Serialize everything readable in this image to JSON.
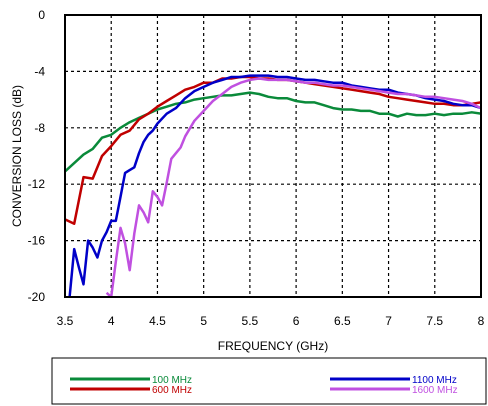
{
  "chart_data": {
    "type": "line",
    "title": "",
    "xlabel": "FREQUENCY (GHz)",
    "ylabel": "CONVERSION LOSS (dB)",
    "xlim": [
      3.5,
      8
    ],
    "ylim": [
      -20,
      0
    ],
    "xticks": [
      3.5,
      4,
      4.5,
      5,
      5.5,
      6,
      6.5,
      7,
      7.5,
      8
    ],
    "xtick_labels": [
      "3.5",
      "4",
      "4.5",
      "5",
      "5.5",
      "6",
      "6.5",
      "7",
      "7.5",
      "8"
    ],
    "yticks": [
      0,
      -4,
      -8,
      -12,
      -16,
      -20
    ],
    "ytick_labels": [
      "0",
      "-4",
      "-8",
      "-12",
      "-16",
      "-20"
    ],
    "grid": true,
    "grid_style": "dotted",
    "legend_position": "bottom",
    "series": [
      {
        "name": "100 MHz",
        "color": "#0a8a3a",
        "x": [
          3.5,
          3.6,
          3.7,
          3.8,
          3.9,
          4.0,
          4.1,
          4.2,
          4.3,
          4.4,
          4.5,
          4.6,
          4.7,
          4.8,
          4.9,
          5.0,
          5.1,
          5.2,
          5.3,
          5.4,
          5.5,
          5.6,
          5.7,
          5.8,
          5.9,
          6.0,
          6.1,
          6.2,
          6.3,
          6.4,
          6.5,
          6.6,
          6.7,
          6.8,
          6.9,
          7.0,
          7.1,
          7.2,
          7.3,
          7.4,
          7.5,
          7.6,
          7.7,
          7.8,
          7.9,
          8.0
        ],
        "y": [
          -11.1,
          -10.5,
          -9.9,
          -9.5,
          -8.7,
          -8.5,
          -8.0,
          -7.6,
          -7.3,
          -7.0,
          -6.7,
          -6.5,
          -6.3,
          -6.2,
          -6.0,
          -5.9,
          -5.8,
          -5.7,
          -5.7,
          -5.6,
          -5.5,
          -5.6,
          -5.8,
          -5.9,
          -5.9,
          -6.1,
          -6.2,
          -6.2,
          -6.4,
          -6.6,
          -6.7,
          -6.7,
          -6.8,
          -6.8,
          -7.0,
          -7.0,
          -7.2,
          -7.0,
          -7.1,
          -7.1,
          -7.0,
          -7.1,
          -7.0,
          -7.0,
          -6.9,
          -7.0
        ]
      },
      {
        "name": "600 MHz",
        "color": "#c00000",
        "x": [
          3.5,
          3.6,
          3.7,
          3.8,
          3.9,
          4.0,
          4.1,
          4.2,
          4.3,
          4.4,
          4.5,
          4.6,
          4.7,
          4.8,
          4.9,
          5.0,
          5.1,
          5.2,
          5.3,
          5.4,
          5.5,
          5.6,
          5.7,
          5.8,
          5.9,
          6.0,
          6.1,
          6.2,
          6.3,
          6.4,
          6.5,
          6.6,
          6.7,
          6.8,
          6.9,
          7.0,
          7.1,
          7.2,
          7.3,
          7.4,
          7.5,
          7.6,
          7.7,
          7.8,
          7.9,
          8.0
        ],
        "y": [
          -14.5,
          -14.8,
          -11.5,
          -11.6,
          -10.0,
          -9.3,
          -8.5,
          -8.2,
          -7.4,
          -7.0,
          -6.5,
          -6.1,
          -5.7,
          -5.3,
          -5.1,
          -4.8,
          -4.8,
          -4.5,
          -4.5,
          -4.4,
          -4.4,
          -4.5,
          -4.5,
          -4.6,
          -4.6,
          -4.7,
          -4.8,
          -4.9,
          -5.0,
          -5.1,
          -5.2,
          -5.3,
          -5.4,
          -5.5,
          -5.6,
          -5.8,
          -5.9,
          -6.0,
          -6.1,
          -6.2,
          -6.3,
          -6.3,
          -6.4,
          -6.4,
          -6.3,
          -6.2
        ]
      },
      {
        "name": "1100 MHz",
        "color": "#0000c8",
        "x": [
          3.55,
          3.6,
          3.65,
          3.7,
          3.75,
          3.8,
          3.85,
          3.9,
          3.95,
          4.0,
          4.05,
          4.1,
          4.15,
          4.2,
          4.25,
          4.3,
          4.35,
          4.4,
          4.45,
          4.5,
          4.6,
          4.7,
          4.8,
          4.9,
          5.0,
          5.1,
          5.2,
          5.3,
          5.4,
          5.5,
          5.6,
          5.7,
          5.8,
          5.9,
          6.0,
          6.1,
          6.2,
          6.3,
          6.4,
          6.5,
          6.6,
          6.7,
          6.8,
          6.9,
          7.0,
          7.1,
          7.2,
          7.3,
          7.4,
          7.5,
          7.6,
          7.7,
          7.8,
          7.9,
          8.0
        ],
        "y": [
          -20.0,
          -16.6,
          -17.9,
          -19.1,
          -16.0,
          -16.5,
          -17.2,
          -16.0,
          -15.4,
          -14.6,
          -14.6,
          -12.9,
          -11.2,
          -11.0,
          -10.8,
          -9.8,
          -9.0,
          -8.5,
          -8.2,
          -7.7,
          -7.0,
          -6.6,
          -5.9,
          -5.4,
          -5.1,
          -4.8,
          -4.6,
          -4.4,
          -4.4,
          -4.3,
          -4.3,
          -4.3,
          -4.4,
          -4.4,
          -4.5,
          -4.6,
          -4.6,
          -4.7,
          -4.8,
          -4.8,
          -5.0,
          -5.1,
          -5.2,
          -5.3,
          -5.3,
          -5.5,
          -5.6,
          -5.7,
          -5.9,
          -6.0,
          -6.1,
          -6.3,
          -6.4,
          -6.4,
          -6.6
        ]
      },
      {
        "name": "1600 MHz",
        "color": "#c050e0",
        "x": [
          3.95,
          4.0,
          4.05,
          4.1,
          4.15,
          4.2,
          4.25,
          4.3,
          4.35,
          4.4,
          4.45,
          4.5,
          4.55,
          4.6,
          4.65,
          4.7,
          4.75,
          4.8,
          4.9,
          5.0,
          5.1,
          5.2,
          5.3,
          5.4,
          5.5,
          5.6,
          5.7,
          5.8,
          5.9,
          6.0,
          6.1,
          6.2,
          6.3,
          6.4,
          6.5,
          6.6,
          6.7,
          6.8,
          6.9,
          7.0,
          7.1,
          7.2,
          7.3,
          7.4,
          7.5,
          7.6,
          7.7,
          7.8,
          7.9,
          8.0
        ],
        "y": [
          -19.7,
          -20.0,
          -17.5,
          -15.1,
          -16.2,
          -18.1,
          -15.5,
          -13.5,
          -14.0,
          -14.7,
          -12.5,
          -12.9,
          -13.5,
          -11.9,
          -10.2,
          -9.8,
          -9.4,
          -8.6,
          -7.5,
          -6.8,
          -6.1,
          -5.6,
          -5.1,
          -4.8,
          -4.6,
          -4.5,
          -4.6,
          -4.6,
          -4.6,
          -4.7,
          -4.8,
          -4.8,
          -4.9,
          -5.0,
          -5.0,
          -5.1,
          -5.2,
          -5.3,
          -5.4,
          -5.5,
          -5.6,
          -5.6,
          -5.7,
          -5.8,
          -5.8,
          -5.9,
          -6.0,
          -6.1,
          -6.3,
          -6.6
        ]
      }
    ]
  }
}
